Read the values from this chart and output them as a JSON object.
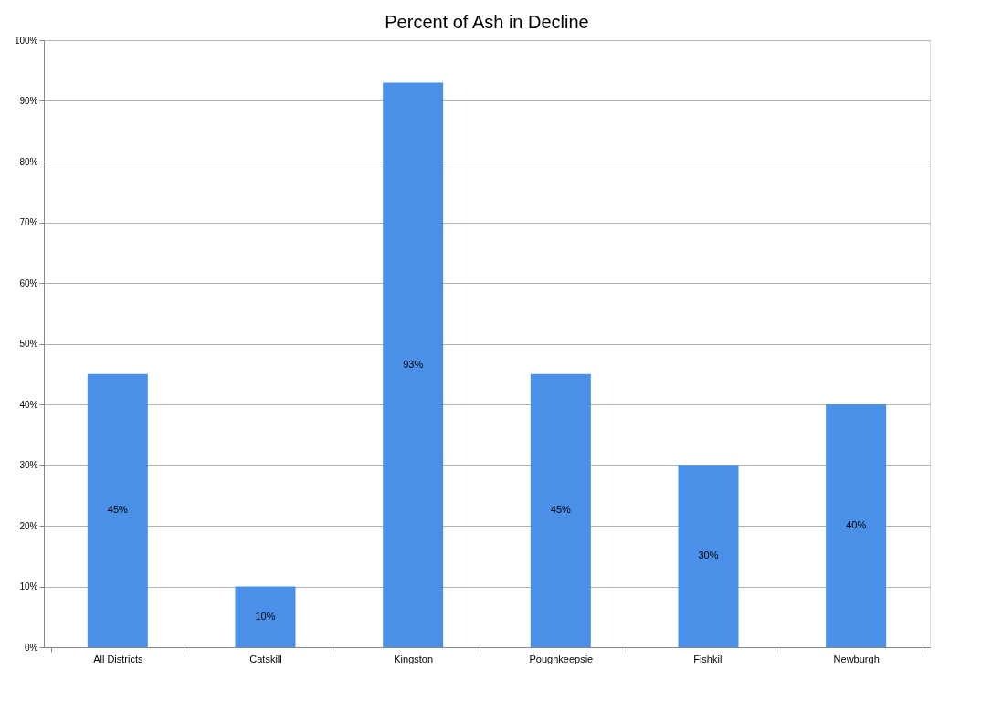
{
  "chart_data": {
    "type": "bar",
    "title": "Percent of Ash in Decline",
    "categories": [
      "All Districts",
      "Catskill",
      "Kingston",
      "Poughkeepsie",
      "Fishkill",
      "Newburgh"
    ],
    "values": [
      45,
      10,
      93,
      45,
      30,
      40
    ],
    "value_labels": [
      "45%",
      "10%",
      "93%",
      "45%",
      "30%",
      "40%"
    ],
    "color": "#4a8fe8",
    "ylim": [
      0,
      100
    ],
    "yticks": [
      {
        "value": 0,
        "label": "0%"
      },
      {
        "value": 10,
        "label": "10%"
      },
      {
        "value": 20,
        "label": "20%"
      },
      {
        "value": 30,
        "label": "30%"
      },
      {
        "value": 40,
        "label": "40%"
      },
      {
        "value": 50,
        "label": "50%"
      },
      {
        "value": 60,
        "label": "60%"
      },
      {
        "value": 70,
        "label": "70%"
      },
      {
        "value": 80,
        "label": "80%"
      },
      {
        "value": 90,
        "label": "90%"
      },
      {
        "value": 100,
        "label": "100%"
      }
    ],
    "grid": "y"
  }
}
